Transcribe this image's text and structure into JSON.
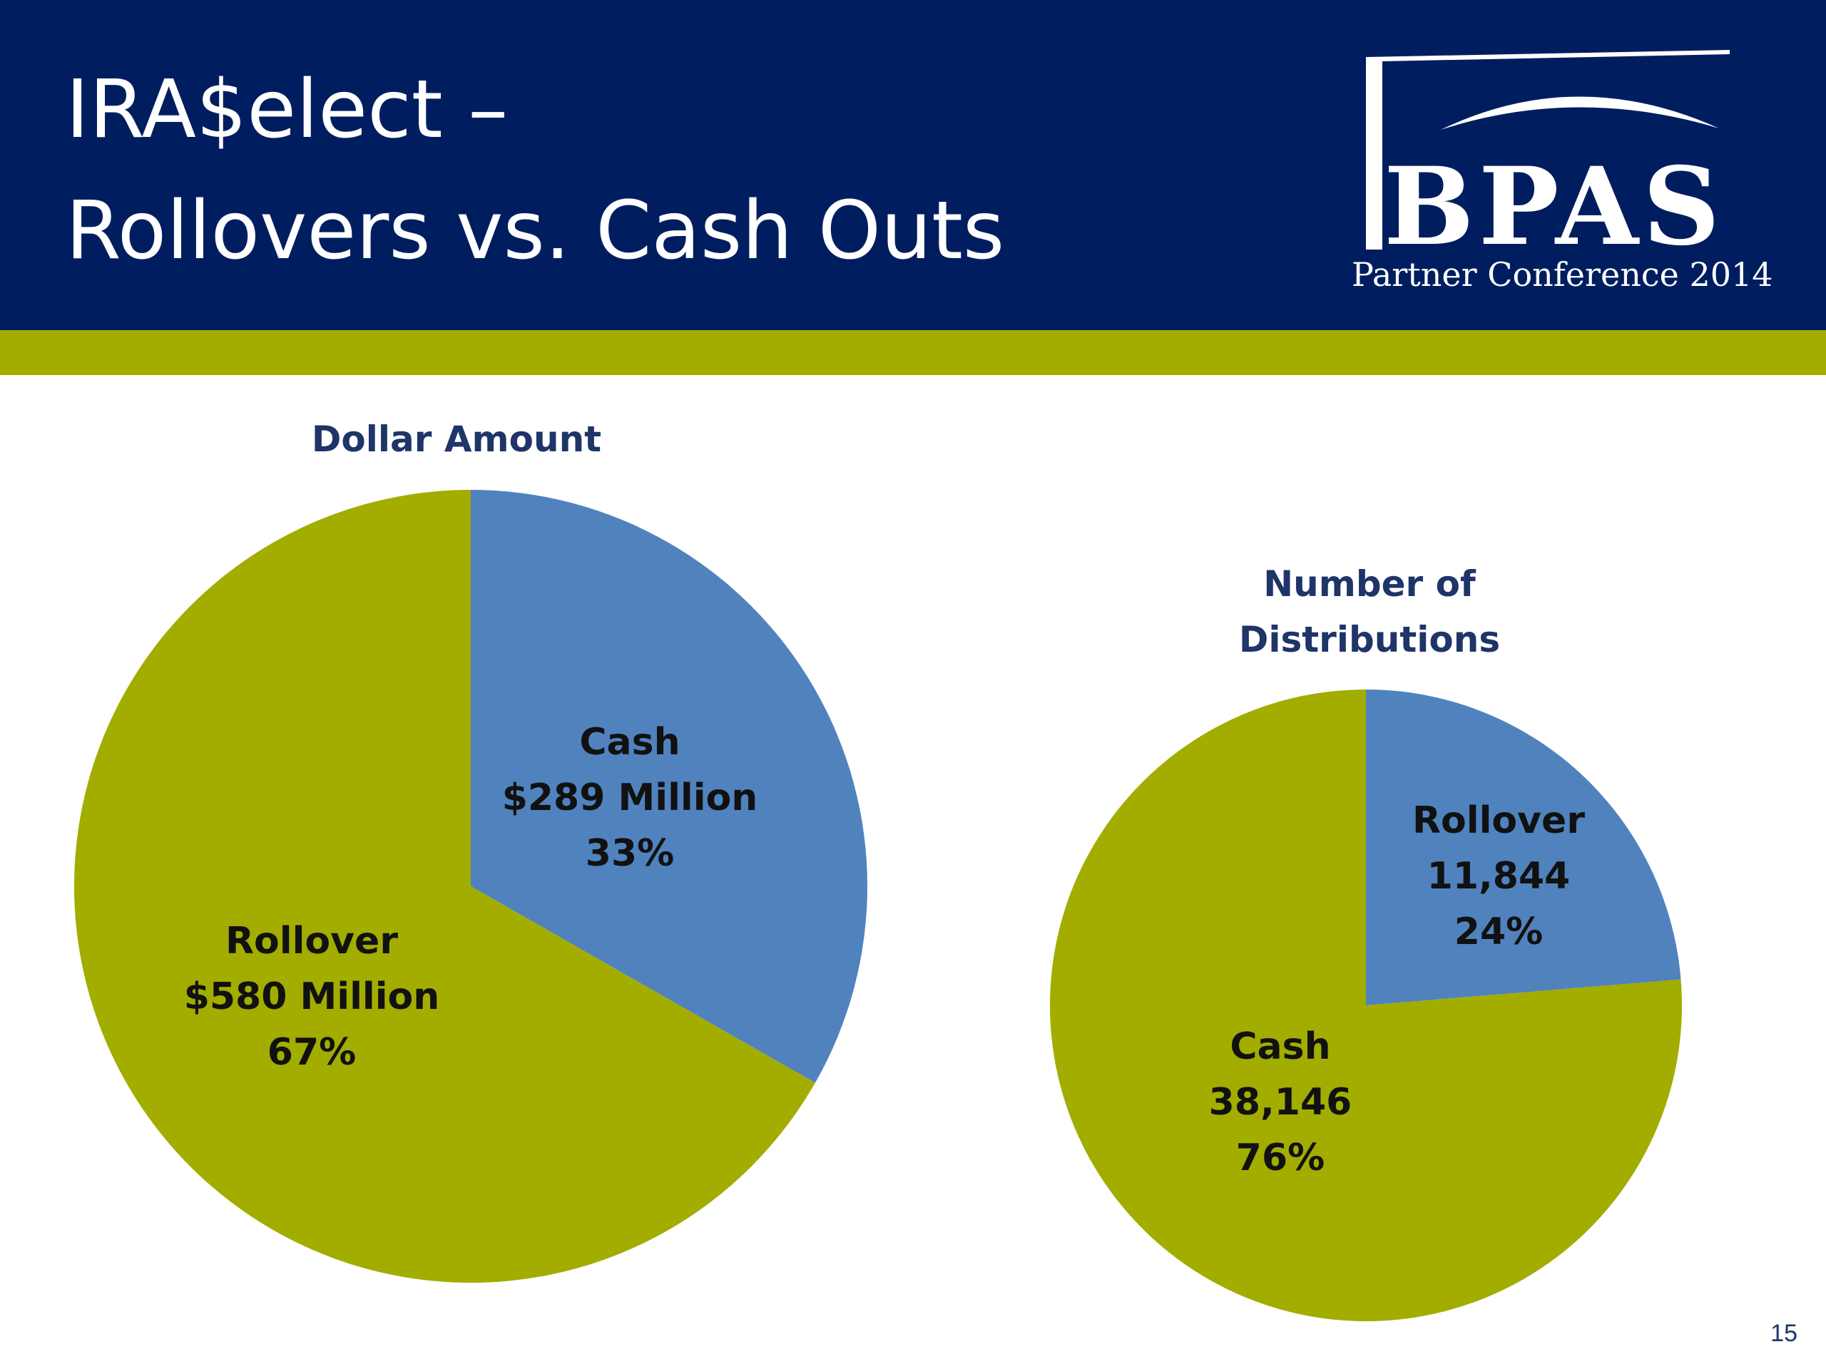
{
  "header": {
    "title_line1": "IRA$elect –",
    "title_line2": "Rollovers vs. Cash Outs",
    "logo_text": "BPAS",
    "logo_subtitle": "Partner Conference 2014"
  },
  "page_number": "15",
  "colors": {
    "header": "#001e5f",
    "band": "#a2ad00",
    "cash_left": "#5082be",
    "rollover_left": "#a2ad00",
    "rollover_right": "#5082be",
    "cash_right": "#a2ad00"
  },
  "chart_data": [
    {
      "type": "pie",
      "title": "Dollar Amount",
      "slices": [
        {
          "name": "Cash",
          "value_text": "$289 Million",
          "percent_text": "33%",
          "value": 289
        },
        {
          "name": "Rollover",
          "value_text": "$580 Million",
          "percent_text": "67%",
          "value": 580
        }
      ]
    },
    {
      "type": "pie",
      "title": "Number of Distributions",
      "slices": [
        {
          "name": "Rollover",
          "value_text": "11,844",
          "percent_text": "24%",
          "value": 11844
        },
        {
          "name": "Cash",
          "value_text": "38,146",
          "percent_text": "76%",
          "value": 38146
        }
      ]
    }
  ]
}
